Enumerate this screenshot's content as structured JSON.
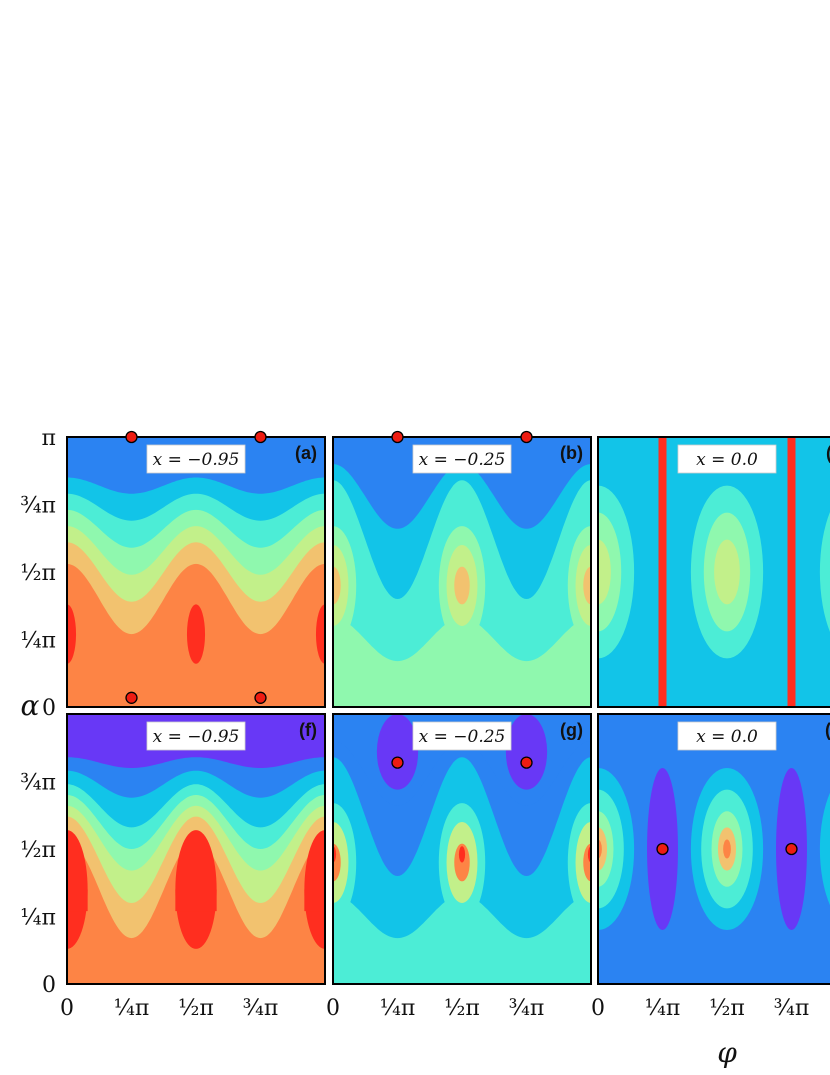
{
  "chart_data": {
    "type": "heatmap",
    "x_label": "φ",
    "y_label": "α",
    "x_ticks": [
      "0",
      "¼π",
      "½π",
      "¾π"
    ],
    "y_ticks": [
      "0",
      "¼π",
      "½π",
      "¾π",
      "π"
    ],
    "x_range": [
      0,
      1.0
    ],
    "y_range": [
      0,
      1.0
    ],
    "colors": {
      "red": "#ff2e1f",
      "orange": "#fd8445",
      "tan": "#f2c26f",
      "lime": "#c2f08a",
      "mint": "#8ff8ae",
      "aqua": "#4cedd6",
      "cyan": "#12c4e8",
      "blue": "#2b83f2",
      "violet": "#6838f6"
    },
    "panels": [
      {
        "id": "a",
        "tag": "(a)",
        "param": "x = −0.95",
        "style": "wave",
        "markers_phi": [
          0.25,
          0.75
        ],
        "markers_alpha": [
          1.0,
          1.0
        ]
      },
      {
        "id": "b",
        "tag": "(b)",
        "param": "x = −0.25",
        "style": "lobes",
        "markers_phi": [
          0.25,
          0.75
        ],
        "markers_alpha": [
          1.0,
          1.0
        ]
      },
      {
        "id": "c",
        "tag": "(c)",
        "param": "x = 0.0",
        "style": "stripes",
        "markers_phi": [],
        "markers_alpha": []
      },
      {
        "id": "f",
        "tag": "(f)",
        "param": "x = −0.95",
        "style": "wave2",
        "markers_phi": [
          0.25,
          0.75
        ],
        "markers_alpha": [
          1.06,
          1.06
        ]
      },
      {
        "id": "g",
        "tag": "(g)",
        "param": "x = −0.25",
        "style": "lobes2",
        "markers_phi": [
          0.25,
          0.75
        ],
        "markers_alpha": [
          0.82,
          0.82
        ]
      },
      {
        "id": "h",
        "tag": "(h)",
        "param": "x = 0.0",
        "style": "islands",
        "markers_phi": [
          0.25,
          0.75
        ],
        "markers_alpha": [
          0.5,
          0.5
        ]
      }
    ]
  }
}
